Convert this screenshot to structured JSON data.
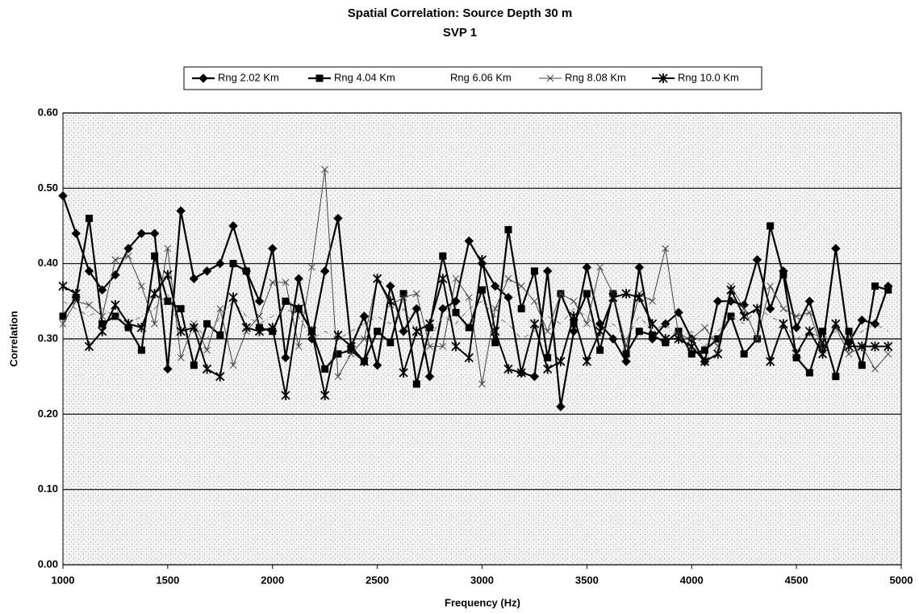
{
  "chart_data": {
    "type": "line",
    "title": "Spatial Correlation:  Source Depth 30 m",
    "subtitle": "SVP 1",
    "x_label": "Frequency (Hz)",
    "y_label": "Correlation",
    "xlim": [
      1000,
      5000
    ],
    "xticks": [
      1000,
      1500,
      2000,
      2500,
      3000,
      3500,
      4000,
      4500,
      5000
    ],
    "ylim": [
      0,
      0.6
    ],
    "yticks": [
      {
        "value": 0,
        "label": "0.00"
      },
      {
        "value": 0.1,
        "label": "0.10"
      },
      {
        "value": 0.2,
        "label": "0.20"
      },
      {
        "value": 0.3,
        "label": "0.30"
      },
      {
        "value": 0.4,
        "label": "0.40"
      },
      {
        "value": 0.5,
        "label": "0.50"
      },
      {
        "value": 0.6,
        "label": "0.60"
      }
    ],
    "grid": true,
    "legend": "top",
    "x": [
      1000,
      1062.5,
      1125,
      1187.5,
      1250,
      1312.5,
      1375,
      1437.5,
      1500,
      1562.5,
      1625,
      1687.5,
      1750,
      1812.5,
      1875,
      1937.5,
      2000,
      2062.5,
      2125,
      2187.5,
      2250,
      2312.5,
      2375,
      2437.5,
      2500,
      2562.5,
      2625,
      2687.5,
      2750,
      2812.5,
      2875,
      2937.5,
      3000,
      3062.5,
      3125,
      3187.5,
      3250,
      3312.5,
      3375,
      3437.5,
      3500,
      3562.5,
      3625,
      3687.5,
      3750,
      3812.5,
      3875,
      3937.5,
      4000,
      4062.5,
      4125,
      4187.5,
      4250,
      4312.5,
      4375,
      4437.5,
      4500,
      4562.5,
      4625,
      4687.5,
      4750,
      4812.5,
      4875,
      4937.5
    ],
    "series": [
      {
        "name": "Rng 2.02 Km",
        "color": "#000000",
        "marker": "diamond",
        "values": [
          0.49,
          0.44,
          0.39,
          0.365,
          0.385,
          0.42,
          0.44,
          0.44,
          0.26,
          0.47,
          0.38,
          0.39,
          0.4,
          0.45,
          0.39,
          0.35,
          0.42,
          0.275,
          0.38,
          0.3,
          0.39,
          0.46,
          0.29,
          0.33,
          0.265,
          0.37,
          0.31,
          0.34,
          0.25,
          0.34,
          0.35,
          0.43,
          0.4,
          0.37,
          0.355,
          0.255,
          0.25,
          0.39,
          0.21,
          0.31,
          0.395,
          0.32,
          0.3,
          0.27,
          0.395,
          0.3,
          0.32,
          0.335,
          0.3,
          0.27,
          0.35,
          0.35,
          0.345,
          0.405,
          0.34,
          0.39,
          0.315,
          0.35,
          0.29,
          0.42,
          0.295,
          0.325,
          0.32,
          0.37
        ]
      },
      {
        "name": "Rng 4.04 Km",
        "color": "#000000",
        "marker": "square",
        "values": [
          0.33,
          0.355,
          0.46,
          0.32,
          0.33,
          0.315,
          0.285,
          0.41,
          0.35,
          0.34,
          0.265,
          0.32,
          0.305,
          0.4,
          0.39,
          0.315,
          0.31,
          0.35,
          0.34,
          0.31,
          0.26,
          0.28,
          0.285,
          0.27,
          0.31,
          0.295,
          0.36,
          0.24,
          0.315,
          0.41,
          0.335,
          0.315,
          0.365,
          0.295,
          0.445,
          0.34,
          0.39,
          0.275,
          0.36,
          0.32,
          0.36,
          0.285,
          0.36,
          0.28,
          0.31,
          0.305,
          0.295,
          0.31,
          0.28,
          0.285,
          0.3,
          0.33,
          0.28,
          0.3,
          0.45,
          0.385,
          0.275,
          0.255,
          0.31,
          0.25,
          0.31,
          0.265,
          0.37,
          0.365
        ]
      },
      {
        "name": "Rng 6.06 Km",
        "color": "#777777",
        "marker": "none",
        "values": [
          0.35,
          0.34,
          0.33,
          0.34,
          0.33,
          0.32,
          0.33,
          0.34,
          0.36,
          0.31,
          0.32,
          0.3,
          0.33,
          0.35,
          0.33,
          0.32,
          0.33,
          0.34,
          0.33,
          0.3,
          0.31,
          0.3,
          0.31,
          0.32,
          0.33,
          0.32,
          0.34,
          0.31,
          0.3,
          0.33,
          0.32,
          0.34,
          0.35,
          0.33,
          0.32,
          0.3,
          0.31,
          0.33,
          0.32,
          0.34,
          0.33,
          0.31,
          0.32,
          0.3,
          0.33,
          0.31,
          0.32,
          0.3,
          0.31,
          0.29,
          0.31,
          0.33,
          0.32,
          0.34,
          0.33,
          0.32,
          0.3,
          0.31,
          0.3,
          0.31,
          0.3,
          0.31,
          0.32,
          0.31
        ]
      },
      {
        "name": "Rng 8.08 Km",
        "color": "#444444",
        "marker": "x",
        "values": [
          0.32,
          0.35,
          0.345,
          0.33,
          0.405,
          0.41,
          0.37,
          0.32,
          0.42,
          0.275,
          0.32,
          0.285,
          0.34,
          0.265,
          0.31,
          0.33,
          0.375,
          0.375,
          0.29,
          0.395,
          0.525,
          0.25,
          0.28,
          0.3,
          0.38,
          0.345,
          0.355,
          0.36,
          0.29,
          0.29,
          0.38,
          0.355,
          0.24,
          0.34,
          0.38,
          0.37,
          0.35,
          0.31,
          0.36,
          0.35,
          0.32,
          0.395,
          0.36,
          0.29,
          0.36,
          0.35,
          0.42,
          0.305,
          0.3,
          0.315,
          0.29,
          0.37,
          0.34,
          0.3,
          0.37,
          0.34,
          0.33,
          0.335,
          0.285,
          0.315,
          0.28,
          0.29,
          0.26,
          0.28
        ]
      },
      {
        "name": "Rng 10.0 Km",
        "color": "#000000",
        "marker": "star",
        "values": [
          0.37,
          0.36,
          0.29,
          0.31,
          0.345,
          0.32,
          0.315,
          0.36,
          0.385,
          0.31,
          0.315,
          0.26,
          0.25,
          0.355,
          0.315,
          0.31,
          0.315,
          0.225,
          0.34,
          0.31,
          0.225,
          0.305,
          0.29,
          0.27,
          0.38,
          0.35,
          0.255,
          0.31,
          0.32,
          0.38,
          0.29,
          0.275,
          0.405,
          0.31,
          0.26,
          0.255,
          0.32,
          0.26,
          0.27,
          0.33,
          0.27,
          0.31,
          0.355,
          0.36,
          0.355,
          0.32,
          0.3,
          0.3,
          0.29,
          0.27,
          0.28,
          0.365,
          0.33,
          0.34,
          0.27,
          0.32,
          0.28,
          0.31,
          0.28,
          0.32,
          0.29,
          0.29,
          0.29,
          0.29
        ]
      }
    ]
  }
}
